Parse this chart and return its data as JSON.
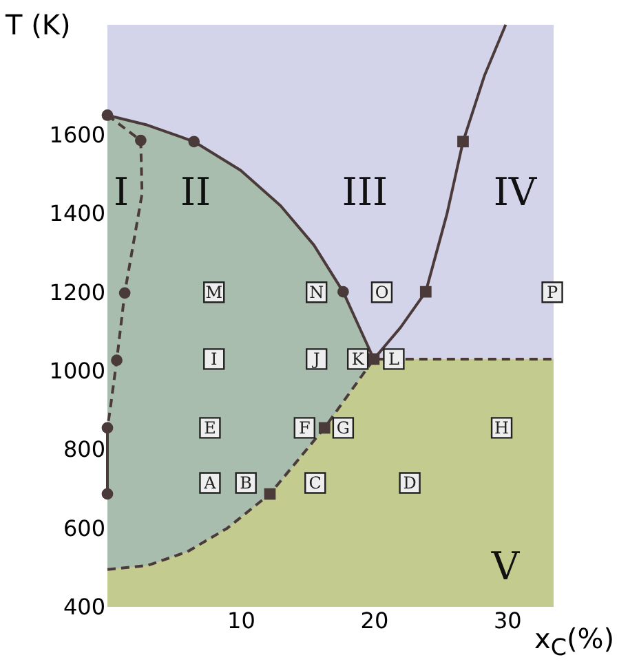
{
  "chart_data": {
    "type": "line",
    "xlabel": "x$_{C}$(%)",
    "ylabel": "T (K)",
    "xlim": [
      0,
      33.5
    ],
    "ylim": [
      400,
      1880
    ],
    "xticks": [
      10,
      20,
      30
    ],
    "yticks": [
      400,
      600,
      800,
      1000,
      1200,
      1400,
      1600
    ],
    "grid": false,
    "series": [
      {
        "type": "area",
        "color": "#a9bdae",
        "line_style": "solid",
        "x": [
          0,
          3,
          6.5,
          10,
          13,
          15.5,
          17.7,
          20
        ],
        "values": [
          1650,
          1625,
          1583,
          1510,
          1420,
          1320,
          1201,
          1030
        ]
      },
      {
        "type": "area",
        "color": "#c3cb8e",
        "line_style": "dashed",
        "x": [
          0,
          3,
          6,
          9,
          12.2,
          16.3,
          20,
          33.5
        ],
        "values": [
          495,
          505,
          540,
          600,
          687,
          855,
          1030,
          1030
        ]
      },
      {
        "color": "#4a3a3a",
        "line_style": "solid",
        "x": [
          20,
          22,
          23.9,
          25.5,
          26.7,
          28.3,
          29.9
        ],
        "values": [
          1030,
          1110,
          1201,
          1400,
          1583,
          1750,
          1880
        ]
      },
      {
        "color": "#4a3a3a",
        "line_style": "dashed",
        "x": [
          0,
          2.5,
          2.6,
          1.3,
          0.7,
          0.2,
          0
        ],
        "values": [
          1650,
          1586,
          1450,
          1198,
          1027,
          900,
          855
        ]
      },
      {
        "color": "#4a3a3a",
        "line_style": "solid",
        "x": [
          0,
          0
        ],
        "values": [
          855,
          687
        ]
      },
      {
        "type": "scatter",
        "color": "#4a3a3a",
        "marker": "circle",
        "x": [
          0,
          2.5,
          6.5,
          1.3,
          0.7,
          0,
          0,
          17.7
        ],
        "values": [
          1650,
          1586,
          1583,
          1198,
          1027,
          855,
          687,
          1201
        ]
      },
      {
        "type": "scatter",
        "color": "#4a3a3a",
        "marker": "square",
        "x": [
          26.7,
          23.9,
          20,
          12.2,
          16.3
        ],
        "values": [
          1583,
          1201,
          1030,
          687,
          855
        ]
      },
      {
        "type": "scatter",
        "color": "#222222",
        "marker": "square",
        "x": [
          8,
          15.7,
          20.6,
          33.4,
          8,
          15.7,
          18.8,
          21.5,
          7.7,
          14.8,
          17.7,
          29.6,
          7.7,
          10.4,
          15.6,
          22.7
        ],
        "values": [
          1200,
          1200,
          1200,
          1200,
          1030,
          1030,
          1030,
          1030,
          855,
          855,
          855,
          855,
          715,
          715,
          715,
          715
        ],
        "value_labels": [
          "M",
          "N",
          "O",
          "P",
          "I",
          "J",
          "K",
          "L",
          "E",
          "F",
          "G",
          "H",
          "A",
          "B",
          "C",
          "D"
        ]
      }
    ],
    "annotations": [
      "I",
      "II",
      "III",
      "IV",
      "V"
    ]
  }
}
